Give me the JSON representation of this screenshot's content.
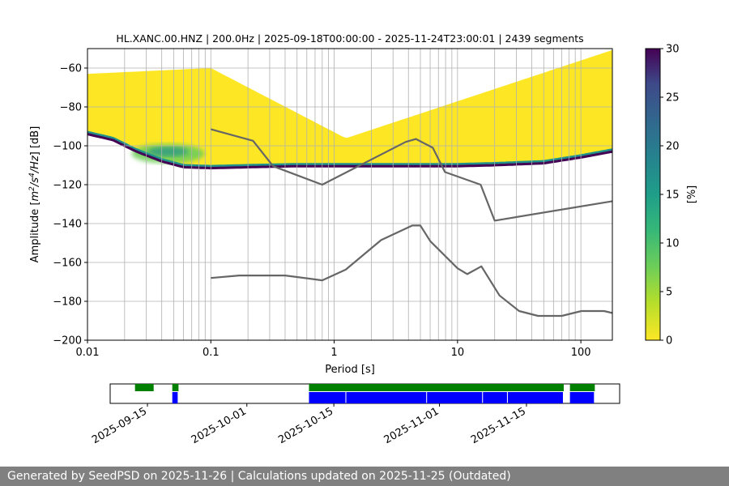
{
  "chart_data": [
    {
      "type": "heatmap",
      "title": "HL.XANC.00.HNZ | 200.0Hz | 2025-09-18T00:00:00 - 2025-11-24T23:00:01 | 2439 segments",
      "xlabel": "Period [s]",
      "ylabel_parts": [
        "Amplitude [",
        "m",
        "2",
        "/s",
        "4",
        "/Hz",
        "] [dB]"
      ],
      "x_scale": "log",
      "xlim": [
        0.01,
        180
      ],
      "ylim": [
        -200,
        -50
      ],
      "x_ticks": [
        {
          "value": 0.01,
          "label": "0.01"
        },
        {
          "value": 0.1,
          "label": "0.1"
        },
        {
          "value": 1,
          "label": "1"
        },
        {
          "value": 10,
          "label": "10"
        },
        {
          "value": 100,
          "label": "100"
        }
      ],
      "y_ticks": [
        {
          "value": -60,
          "label": "−60"
        },
        {
          "value": -80,
          "label": "−80"
        },
        {
          "value": -100,
          "label": "−100"
        },
        {
          "value": -120,
          "label": "−120"
        },
        {
          "value": -140,
          "label": "−140"
        },
        {
          "value": -160,
          "label": "−160"
        },
        {
          "value": -180,
          "label": "−180"
        },
        {
          "value": -200,
          "label": "−200"
        }
      ],
      "grid": true,
      "noise_models": [
        {
          "x": [
            0.1,
            0.22,
            0.32,
            0.8,
            3.8,
            4.6,
            6.3,
            7.9,
            15.4,
            20,
            180
          ],
          "y": [
            -91.5,
            -97.4,
            -110.5,
            -120.0,
            -98.0,
            -96.5,
            -101.0,
            -113.5,
            -120.0,
            -138.5,
            -128.5
          ]
        },
        {
          "x": [
            0.1,
            0.17,
            0.4,
            0.8,
            1.24,
            2.4,
            4.3,
            5.0,
            6.0,
            10.0,
            12.0,
            15.6,
            21.9,
            31.6,
            45,
            70,
            101,
            154,
            180
          ],
          "y": [
            -168.0,
            -166.7,
            -166.7,
            -169.2,
            -163.7,
            -148.5,
            -141.0,
            -141.0,
            -149.0,
            -163.0,
            -166.0,
            -162.0,
            -177.0,
            -185.0,
            -187.5,
            -187.5,
            -185.0,
            -185.0,
            -186.0
          ]
        }
      ],
      "density_ridge": {
        "x": [
          0.01,
          0.016,
          0.025,
          0.04,
          0.06,
          0.1,
          0.2,
          0.5,
          1,
          2,
          5,
          10,
          20,
          50,
          100,
          180
        ],
        "y": [
          -94,
          -97,
          -103,
          -108,
          -111,
          -111.5,
          -111,
          -110.5,
          -110.5,
          -110.5,
          -110.5,
          -110.5,
          -110,
          -109,
          -106,
          -103
        ]
      },
      "colorbar": {
        "label": "[%]",
        "min": 0,
        "max": 30,
        "ticks": [
          {
            "value": 0,
            "label": "0"
          },
          {
            "value": 5,
            "label": "5"
          },
          {
            "value": 10,
            "label": "10"
          },
          {
            "value": 15,
            "label": "15"
          },
          {
            "value": 20,
            "label": "20"
          },
          {
            "value": 25,
            "label": "25"
          },
          {
            "value": 30,
            "label": "30"
          }
        ]
      },
      "colors": {
        "line": "#666666",
        "grid": "#b0b0b0",
        "yellow": "#fde725",
        "teal": "#21918c",
        "dark": "#440154"
      }
    },
    {
      "type": "timeline",
      "x_start": "2025-09-09",
      "x_end": "2025-11-30",
      "ticks": [
        {
          "date": "2025-09-15",
          "label": "2025-09-15"
        },
        {
          "date": "2025-10-01",
          "label": "2025-10-01"
        },
        {
          "date": "2025-10-15",
          "label": "2025-10-15"
        },
        {
          "date": "2025-11-01",
          "label": "2025-11-01"
        },
        {
          "date": "2025-11-15",
          "label": "2025-11-15"
        }
      ],
      "green_segments": [
        [
          "2025-09-13",
          "2025-09-16"
        ],
        [
          "2025-09-19",
          "2025-09-20"
        ],
        [
          "2025-10-11",
          "2025-11-21"
        ],
        [
          "2025-11-22",
          "2025-11-26"
        ]
      ],
      "blue_segments": [
        [
          "2025-09-19",
          "2025-09-20"
        ],
        [
          "2025-10-11",
          "2025-10-17"
        ],
        [
          "2025-10-17",
          "2025-10-30"
        ],
        [
          "2025-10-30",
          "2025-11-08"
        ],
        [
          "2025-11-08",
          "2025-11-12"
        ],
        [
          "2025-11-12",
          "2025-11-21"
        ],
        [
          "2025-11-22",
          "2025-11-26"
        ]
      ],
      "colors": {
        "green": "#008000",
        "blue": "#0000ff"
      }
    }
  ],
  "footer": {
    "text": "Generated by SeedPSD on 2025-11-26 | Calculations updated on 2025-11-25 (Outdated)"
  }
}
